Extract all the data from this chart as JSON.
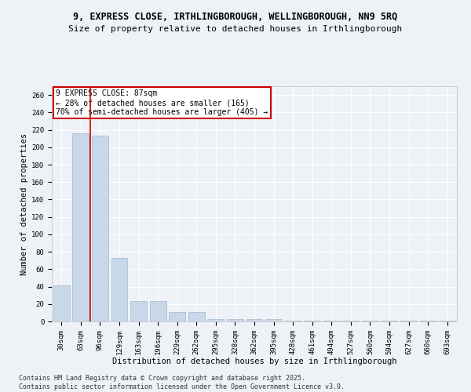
{
  "title_line1": "9, EXPRESS CLOSE, IRTHLINGBOROUGH, WELLINGBOROUGH, NN9 5RQ",
  "title_line2": "Size of property relative to detached houses in Irthlingborough",
  "xlabel": "Distribution of detached houses by size in Irthlingborough",
  "ylabel": "Number of detached properties",
  "categories": [
    "30sqm",
    "63sqm",
    "96sqm",
    "129sqm",
    "163sqm",
    "196sqm",
    "229sqm",
    "262sqm",
    "295sqm",
    "328sqm",
    "362sqm",
    "395sqm",
    "428sqm",
    "461sqm",
    "494sqm",
    "527sqm",
    "560sqm",
    "594sqm",
    "627sqm",
    "660sqm",
    "693sqm"
  ],
  "values": [
    41,
    216,
    213,
    73,
    23,
    23,
    11,
    11,
    3,
    3,
    3,
    3,
    1,
    1,
    1,
    1,
    1,
    1,
    1,
    1,
    1
  ],
  "bar_color": "#c8d8e8",
  "bar_edge_color": "#a0b8cc",
  "annotation_line1": "9 EXPRESS CLOSE: 87sqm",
  "annotation_line2": "← 28% of detached houses are smaller (165)",
  "annotation_line3": "70% of semi-detached houses are larger (405) →",
  "annotation_box_color": "#ffffff",
  "annotation_box_edge": "#cc0000",
  "red_line_color": "#cc0000",
  "ylim": [
    0,
    270
  ],
  "yticks": [
    0,
    20,
    40,
    60,
    80,
    100,
    120,
    140,
    160,
    180,
    200,
    220,
    240,
    260
  ],
  "background_color": "#eef2f7",
  "grid_color": "#ffffff",
  "footer_line1": "Contains HM Land Registry data © Crown copyright and database right 2025.",
  "footer_line2": "Contains public sector information licensed under the Open Government Licence v3.0.",
  "title_fontsize": 8.5,
  "subtitle_fontsize": 8.0,
  "axis_label_fontsize": 7.5,
  "tick_fontsize": 6.5,
  "annotation_fontsize": 7.0,
  "footer_fontsize": 6.0
}
